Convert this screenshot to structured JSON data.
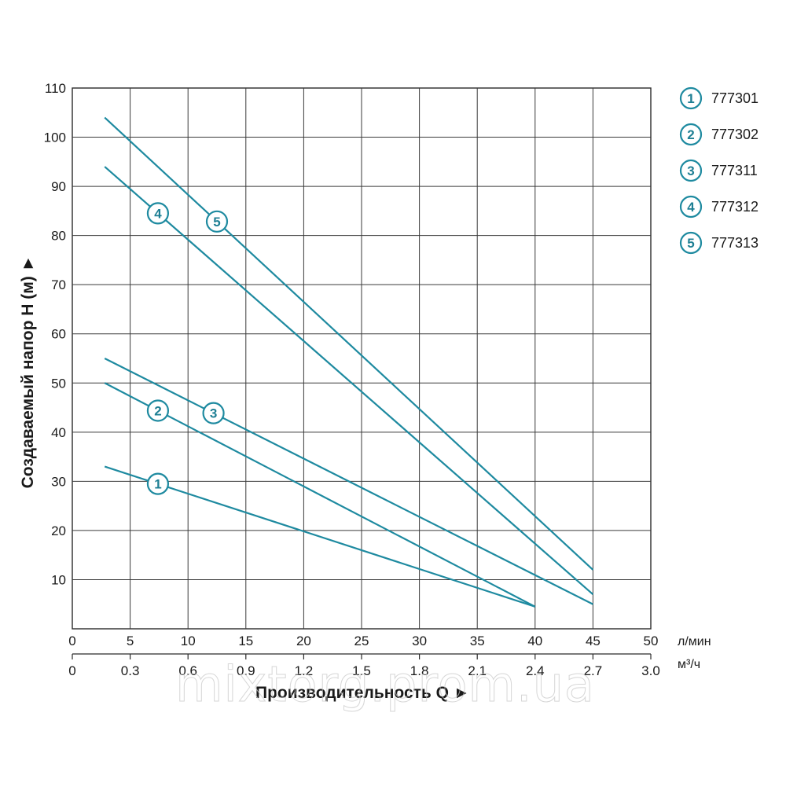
{
  "chart_data": {
    "type": "line",
    "ylabel": "Создаваемый напор Н (м) ►",
    "xlabel": "Производительность Q ►",
    "ylim": [
      0,
      110
    ],
    "xlim": [
      0,
      50
    ],
    "grid": true,
    "y_ticks": [
      "10",
      "20",
      "30",
      "40",
      "50",
      "60",
      "70",
      "80",
      "90",
      "100",
      "110"
    ],
    "x_ticks_primary": [
      "0",
      "5",
      "10",
      "15",
      "20",
      "25",
      "30",
      "35",
      "40",
      "45",
      "50"
    ],
    "x_unit_primary": "л/мин",
    "x_ticks_secondary": [
      "0",
      "0.3",
      "0.6",
      "0.9",
      "1.2",
      "1.5",
      "1.8",
      "2.1",
      "2.4",
      "2.7",
      "3.0"
    ],
    "x_unit_secondary": "м³/ч",
    "line_color": "#1e8aa0",
    "series": [
      {
        "marker": "1",
        "name": "777301",
        "x": [
          2.8,
          40
        ],
        "y": [
          33,
          4.5
        ],
        "marker_x": 7.4
      },
      {
        "marker": "2",
        "name": "777302",
        "x": [
          2.8,
          40
        ],
        "y": [
          50,
          4.5
        ],
        "marker_x": 7.4
      },
      {
        "marker": "3",
        "name": "777311",
        "x": [
          2.8,
          45
        ],
        "y": [
          55,
          5
        ],
        "marker_x": 12.2
      },
      {
        "marker": "4",
        "name": "777312",
        "x": [
          2.8,
          45
        ],
        "y": [
          94,
          7
        ],
        "marker_x": 7.4
      },
      {
        "marker": "5",
        "name": "777313",
        "x": [
          2.8,
          45
        ],
        "y": [
          104,
          12
        ],
        "marker_x": 12.5
      }
    ]
  },
  "watermark": "mixtorg.prom.ua"
}
